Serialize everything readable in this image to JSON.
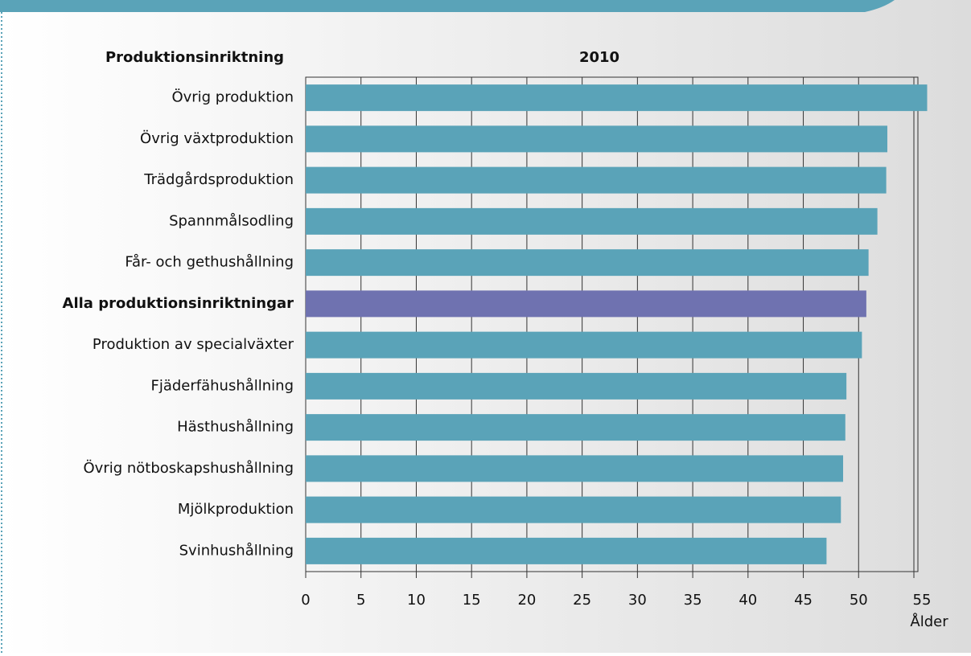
{
  "chart_data": {
    "type": "barh",
    "title": "2010",
    "category_header": "Produktionsinriktning",
    "x_label": "Ålder",
    "categories": [
      "Övrig produktion",
      "Övrig växtproduktion",
      "Trädgårdsproduktion",
      "Spannmålsodling",
      "Får- och gethushållning",
      "Alla produktionsinriktningar",
      "Produktion av specialväxter",
      "Fjäderfähushållning",
      "Hästhushållning",
      "Övrig nötboskapshushållning",
      "Mjölkproduktion",
      "Svinhushållning"
    ],
    "values": [
      56.2,
      52.6,
      52.5,
      51.7,
      50.9,
      50.7,
      50.3,
      48.9,
      48.8,
      48.6,
      48.4,
      47.1
    ],
    "color": "#5aa3b8",
    "colors": [
      "#5aa3b8",
      "#5aa3b8",
      "#5aa3b8",
      "#5aa3b8",
      "#5aa3b8",
      "#6f72b0",
      "#5aa3b8",
      "#5aa3b8",
      "#5aa3b8",
      "#5aa3b8",
      "#5aa3b8",
      "#5aa3b8"
    ],
    "xlim": [
      0,
      55
    ],
    "xticks": [
      0,
      5,
      10,
      15,
      20,
      25,
      30,
      35,
      40,
      45,
      50,
      55
    ],
    "grid": true
  }
}
